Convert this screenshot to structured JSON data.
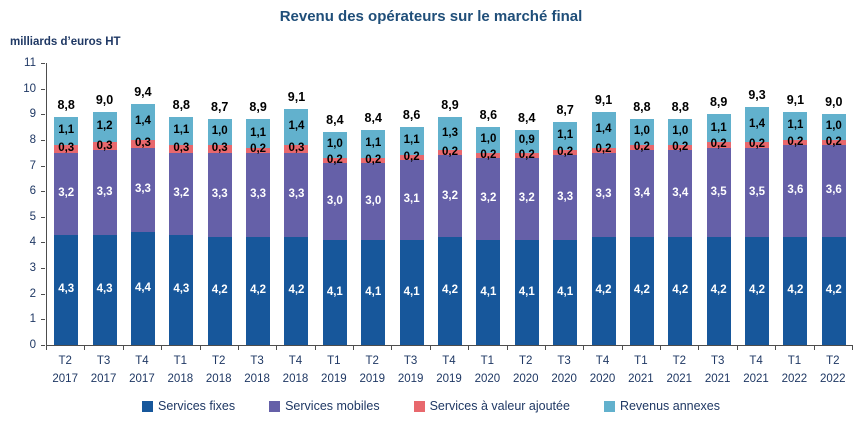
{
  "title": "Revenu des opérateurs sur le marché final",
  "unit_label": "milliards d’euros HT",
  "colors": {
    "services_fixes": "#17579B",
    "services_mobiles": "#6560A8",
    "services_valeur_ajoutee": "#E8686D",
    "revenus_annexes": "#62B1CD",
    "title_text": "#1F4E79",
    "axis_text": "#1F3864",
    "total_label_text": "#000000"
  },
  "chart_data": {
    "type": "bar",
    "stacked": true,
    "title": "Revenu des opérateurs sur le marché final",
    "ylabel": "milliards d’euros HT",
    "xlabel": "",
    "ylim": [
      0,
      11
    ],
    "ytick_step": 1,
    "grid": false,
    "legend_position": "bottom",
    "categories": [
      {
        "quarter": "T2",
        "year": "2017"
      },
      {
        "quarter": "T3",
        "year": "2017"
      },
      {
        "quarter": "T4",
        "year": "2017"
      },
      {
        "quarter": "T1",
        "year": "2018"
      },
      {
        "quarter": "T2",
        "year": "2018"
      },
      {
        "quarter": "T3",
        "year": "2018"
      },
      {
        "quarter": "T4",
        "year": "2018"
      },
      {
        "quarter": "T1",
        "year": "2019"
      },
      {
        "quarter": "T2",
        "year": "2019"
      },
      {
        "quarter": "T3",
        "year": "2019"
      },
      {
        "quarter": "T4",
        "year": "2019"
      },
      {
        "quarter": "T1",
        "year": "2020"
      },
      {
        "quarter": "T2",
        "year": "2020"
      },
      {
        "quarter": "T3",
        "year": "2020"
      },
      {
        "quarter": "T4",
        "year": "2020"
      },
      {
        "quarter": "T1",
        "year": "2021"
      },
      {
        "quarter": "T2",
        "year": "2021"
      },
      {
        "quarter": "T3",
        "year": "2021"
      },
      {
        "quarter": "T4",
        "year": "2021"
      },
      {
        "quarter": "T1",
        "year": "2022"
      },
      {
        "quarter": "T2",
        "year": "2022"
      }
    ],
    "series": [
      {
        "name": "Services fixes",
        "color": "#17579B",
        "label_color": "#FFFFFF",
        "values": [
          4.3,
          4.3,
          4.4,
          4.3,
          4.2,
          4.2,
          4.2,
          4.1,
          4.1,
          4.1,
          4.2,
          4.1,
          4.1,
          4.1,
          4.2,
          4.2,
          4.2,
          4.2,
          4.2,
          4.2,
          4.2
        ]
      },
      {
        "name": "Services mobiles",
        "color": "#6560A8",
        "label_color": "#FFFFFF",
        "values": [
          3.2,
          3.3,
          3.3,
          3.2,
          3.3,
          3.3,
          3.3,
          3.0,
          3.0,
          3.1,
          3.2,
          3.2,
          3.2,
          3.3,
          3.3,
          3.4,
          3.4,
          3.5,
          3.5,
          3.6,
          3.6
        ]
      },
      {
        "name": "Services à valeur ajoutée",
        "color": "#E8686D",
        "label_color": "#000000",
        "values": [
          0.3,
          0.3,
          0.3,
          0.3,
          0.3,
          0.2,
          0.3,
          0.2,
          0.2,
          0.2,
          0.2,
          0.2,
          0.2,
          0.2,
          0.2,
          0.2,
          0.2,
          0.2,
          0.2,
          0.2,
          0.2
        ]
      },
      {
        "name": "Revenus annexes",
        "color": "#62B1CD",
        "label_color": "#000000",
        "values": [
          1.1,
          1.2,
          1.4,
          1.1,
          1.0,
          1.1,
          1.4,
          1.0,
          1.1,
          1.1,
          1.3,
          1.0,
          0.9,
          1.1,
          1.4,
          1.0,
          1.0,
          1.1,
          1.4,
          1.1,
          1.0
        ]
      }
    ],
    "totals": [
      "8,8",
      "9,0",
      "9,4",
      "8,8",
      "8,7",
      "8,9",
      "9,1",
      "8,4",
      "8,4",
      "8,6",
      "8,9",
      "8,6",
      "8,4",
      "8,7",
      "9,1",
      "8,8",
      "8,8",
      "8,9",
      "9,3",
      "9,1",
      "9,0"
    ]
  }
}
